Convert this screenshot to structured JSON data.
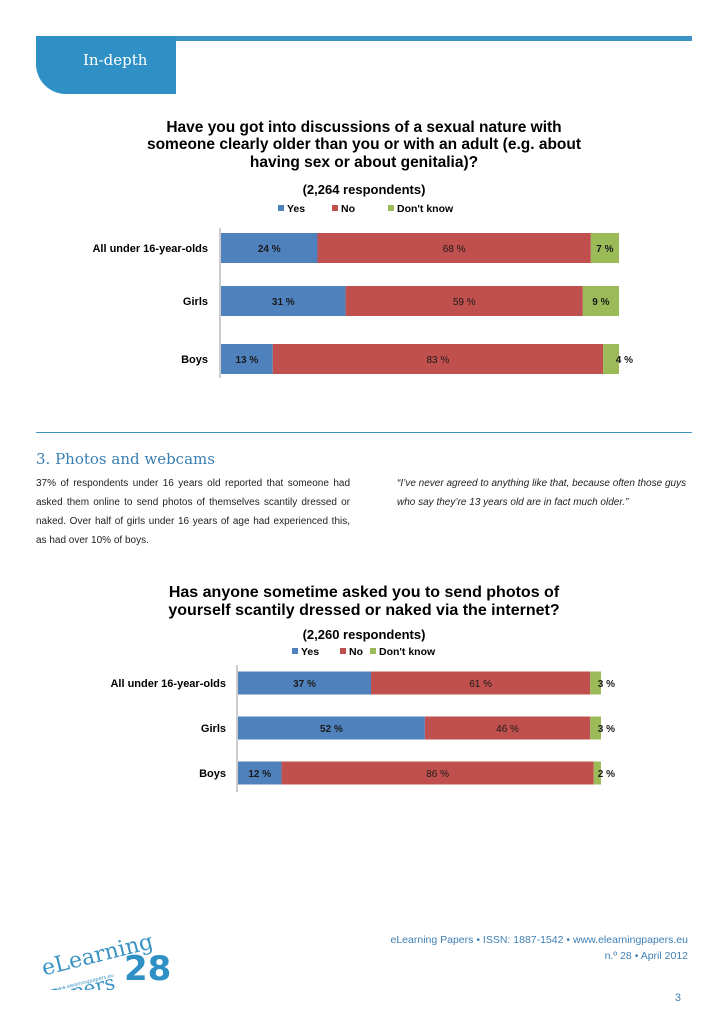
{
  "header": {
    "section": "In-depth"
  },
  "chart_data": [
    {
      "type": "bar",
      "orientation": "horizontal",
      "stacked": "percent",
      "title": "Have you got into discussions of a sexual nature with someone clearly older than you or with an adult (e.g. about having sex or about genitalia)?",
      "title_lines": [
        "Have you got into discussions of a sexual nature with",
        "someone clearly older than you or with an adult (e.g. about",
        "having sex or about genitalia)?"
      ],
      "subtitle": "(2,264 respondents)",
      "legend": [
        "Yes",
        "No",
        "Don't know"
      ],
      "legend_placement": "top",
      "categories": [
        "All under 16-year-olds",
        "Girls",
        "Boys"
      ],
      "series": [
        {
          "name": "Yes",
          "color": "#4f81bd",
          "values": [
            24,
            31,
            13
          ],
          "labels": [
            "24 %",
            "31 %",
            "13 %"
          ]
        },
        {
          "name": "No",
          "color": "#c0504d",
          "values": [
            68,
            59,
            83
          ],
          "labels": [
            "68 %",
            "59 %",
            "83 %"
          ]
        },
        {
          "name": "Don't know",
          "color": "#9bbb59",
          "values": [
            7,
            9,
            4
          ],
          "labels": [
            "7 %",
            "9 %",
            "4 %"
          ]
        }
      ],
      "xlim": [
        0,
        100
      ]
    },
    {
      "type": "bar",
      "orientation": "horizontal",
      "stacked": "percent",
      "title": "Has anyone sometime asked you to send photos of yourself scantily dressed or naked via the internet?",
      "title_lines": [
        "Has anyone sometime asked you to send photos of",
        "yourself scantily dressed or naked via the internet?"
      ],
      "subtitle": "(2,260 respondents)",
      "legend": [
        "Yes",
        "No",
        "Don't know"
      ],
      "legend_placement": "top",
      "categories": [
        "All under 16-year-olds",
        "Girls",
        "Boys"
      ],
      "series": [
        {
          "name": "Yes",
          "color": "#4f81bd",
          "values": [
            37,
            52,
            12
          ],
          "labels": [
            "37 %",
            "52 %",
            "12 %"
          ]
        },
        {
          "name": "No",
          "color": "#c0504d",
          "values": [
            61,
            46,
            86
          ],
          "labels": [
            "61 %",
            "46 %",
            "86 %"
          ]
        },
        {
          "name": "Don't know",
          "color": "#9bbb59",
          "values": [
            3,
            3,
            2
          ],
          "labels": [
            "3 %",
            "3 %",
            "2 %"
          ]
        }
      ],
      "xlim": [
        0,
        100
      ]
    }
  ],
  "section": {
    "title": "3. Photos and webcams",
    "body": "37% of respondents under 16 years old reported that someone had asked them online to send photos of themselves scantily dressed or naked. Over half of girls under 16 years of age had experienced this, as had over 10% of boys.",
    "quote": "“I’ve never agreed to anything like that, because often those guys who say they’re 13 years old are in fact much older.”"
  },
  "footer": {
    "logo_main": "eLearning",
    "logo_sub": "Papers",
    "logo_number": "28",
    "logo_url": "www.elearningpapers.eu",
    "journal": "eLearning Papers",
    "issn": "ISSN: 1887-1542",
    "url": "www.elearningpapers.eu",
    "issue": "n.º 28",
    "date": "April 2012",
    "page_number": "3"
  },
  "colors": {
    "accent": "#3a93c4",
    "yes": "#4f81bd",
    "no": "#c0504d",
    "dontknow": "#9bbb59"
  }
}
